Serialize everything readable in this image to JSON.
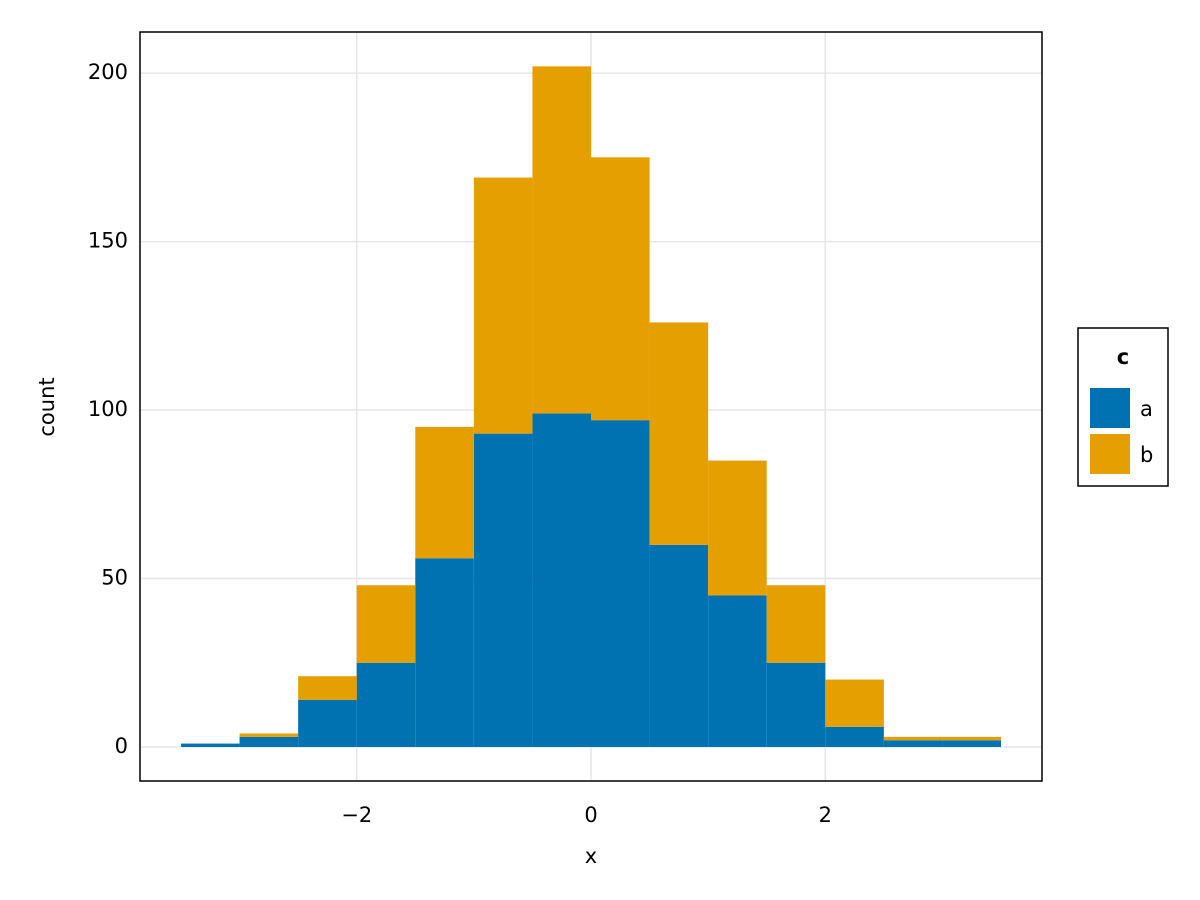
{
  "chart_data": {
    "type": "histogram",
    "xlabel": "x",
    "ylabel": "count",
    "bins": [
      -3.5,
      -3,
      -2.5,
      -2,
      -1.5,
      -1,
      -0.5,
      0,
      0.5,
      1,
      1.5,
      2,
      2.5,
      3,
      3.5
    ],
    "stacked": true,
    "series": [
      {
        "name": "a",
        "color": "#0072b2",
        "values": [
          1,
          3,
          14,
          25,
          56,
          93,
          99,
          97,
          60,
          45,
          25,
          6,
          2,
          2
        ]
      },
      {
        "name": "b",
        "color": "#e69f00",
        "values": [
          0,
          1,
          7,
          23,
          39,
          76,
          103,
          78,
          66,
          40,
          23,
          14,
          1,
          1
        ]
      }
    ],
    "xlim": [
      -3.85,
      3.85
    ],
    "ylim": [
      -10.1,
      212.2
    ],
    "xticks": [
      {
        "value": -2,
        "label": "−2"
      },
      0,
      2
    ],
    "yticks": [
      0,
      50,
      100,
      150,
      200
    ],
    "grid": true,
    "legend": {
      "title": "c",
      "position": "right"
    }
  }
}
